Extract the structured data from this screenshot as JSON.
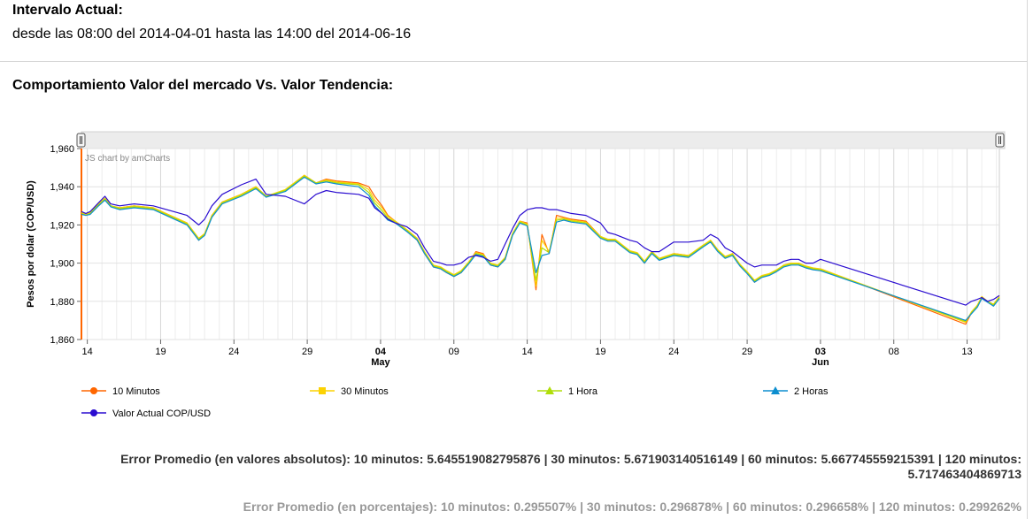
{
  "header": {
    "title": "Intervalo Actual:",
    "range": "desde las 08:00 del 2014-04-01 hasta las 14:00 del 2014-06-16"
  },
  "chart_heading": "Comportamiento Valor del mercado Vs. Valor Tendencia:",
  "chart_data": {
    "type": "line",
    "title": "",
    "xlabel": "",
    "ylabel": "Pesos por dolar (COP/USD)",
    "credit": "JS chart by amCharts",
    "ylim": [
      1860,
      1960
    ],
    "yticks": [
      1860,
      1880,
      1900,
      1920,
      1940,
      1960
    ],
    "ytick_labels": [
      "1,860",
      "1,880",
      "1,900",
      "1,920",
      "1,940",
      "1,960"
    ],
    "xticks": [
      {
        "day": 14,
        "label": "14"
      },
      {
        "day": 19,
        "label": "19"
      },
      {
        "day": 24,
        "label": "24"
      },
      {
        "day": 29,
        "label": "29"
      },
      {
        "day": 34,
        "label": "04",
        "sub": "May"
      },
      {
        "day": 39,
        "label": "09"
      },
      {
        "day": 44,
        "label": "14"
      },
      {
        "day": 49,
        "label": "19"
      },
      {
        "day": 54,
        "label": "24"
      },
      {
        "day": 59,
        "label": "29"
      },
      {
        "day": 64,
        "label": "03",
        "sub": "Jun"
      },
      {
        "day": 69,
        "label": "08"
      },
      {
        "day": 74,
        "label": "13"
      }
    ],
    "xlim": [
      13.6,
      76.2
    ],
    "legend_position": "bottom",
    "series": [
      {
        "name": "10 Minutos",
        "color": "#ff6600",
        "marker": "circle",
        "x": [
          13.6,
          13.9,
          14.2,
          14.7,
          15.2,
          15.6,
          16.2,
          17.2,
          18.5,
          20.8,
          21.6,
          22.0,
          22.5,
          23.2,
          24.5,
          25.5,
          26.2,
          27.5,
          28.8,
          29.6,
          30.3,
          31.0,
          32.5,
          33.2,
          33.6,
          34.1,
          34.5,
          35.0,
          35.8,
          36.5,
          37.0,
          37.6,
          38.1,
          38.5,
          39.0,
          39.5,
          40.0,
          40.5,
          41.0,
          41.5,
          42.0,
          42.5,
          43.0,
          43.5,
          44.0,
          44.6,
          45.0,
          45.5,
          46.0,
          46.5,
          47.0,
          48.0,
          49.0,
          49.5,
          50.0,
          51.0,
          51.5,
          52.0,
          52.5,
          53.0,
          54.0,
          55.0,
          56.0,
          56.5,
          57.0,
          57.5,
          58.0,
          58.5,
          59.0,
          59.5,
          60.0,
          60.5,
          61.0,
          61.5,
          62.0,
          62.5,
          63.0,
          63.5,
          64.0,
          73.9,
          74.3,
          74.7,
          75.0,
          75.4,
          75.8,
          76.2
        ],
        "y": [
          1926,
          1925,
          1926,
          1930,
          1934,
          1930,
          1929,
          1930,
          1929,
          1921,
          1912,
          1915,
          1925,
          1932,
          1936,
          1940,
          1935,
          1938,
          1946,
          1942,
          1944,
          1943,
          1942,
          1940,
          1935,
          1930,
          1925,
          1922,
          1917,
          1912,
          1905,
          1898,
          1897,
          1895,
          1893,
          1895,
          1900,
          1906,
          1905,
          1899,
          1898,
          1902,
          1915,
          1922,
          1921,
          1886,
          1915,
          1905,
          1925,
          1924,
          1923,
          1922,
          1914,
          1912,
          1912,
          1906,
          1905,
          1900,
          1906,
          1902,
          1905,
          1904,
          1909,
          1912,
          1907,
          1903,
          1905,
          1899,
          1895,
          1890,
          1893,
          1894,
          1896,
          1899,
          1900,
          1900,
          1898,
          1897,
          1897,
          1868,
          1874,
          1878,
          1882,
          1880,
          1878,
          1882
        ]
      },
      {
        "name": "30 Minutos",
        "color": "#fcd202",
        "marker": "square",
        "x": [
          13.6,
          13.9,
          14.2,
          14.7,
          15.2,
          15.6,
          16.2,
          17.2,
          18.5,
          20.8,
          21.6,
          22.0,
          22.5,
          23.2,
          24.5,
          25.5,
          26.2,
          27.5,
          28.8,
          29.6,
          30.3,
          31.0,
          32.5,
          33.2,
          33.6,
          34.1,
          34.5,
          35.0,
          35.8,
          36.5,
          37.0,
          37.6,
          38.1,
          38.5,
          39.0,
          39.5,
          40.0,
          40.5,
          41.0,
          41.5,
          42.0,
          42.5,
          43.0,
          43.5,
          44.0,
          44.6,
          45.0,
          45.5,
          46.0,
          46.5,
          47.0,
          48.0,
          49.0,
          49.5,
          50.0,
          51.0,
          51.5,
          52.0,
          52.5,
          53.0,
          54.0,
          55.0,
          56.0,
          56.5,
          57.0,
          57.5,
          58.0,
          58.5,
          59.0,
          59.5,
          60.0,
          60.5,
          61.0,
          61.5,
          62.0,
          62.5,
          63.0,
          63.5,
          64.0,
          73.9,
          74.3,
          74.7,
          75.0,
          75.4,
          75.8,
          76.2
        ],
        "y": [
          1926.5,
          1925.5,
          1926.5,
          1930.5,
          1934,
          1930,
          1929,
          1930,
          1929,
          1921,
          1913,
          1915.5,
          1925,
          1932,
          1936,
          1940,
          1935,
          1938.5,
          1946,
          1942,
          1943.5,
          1942.5,
          1941.5,
          1938.5,
          1933,
          1929,
          1924.5,
          1922,
          1917.5,
          1913,
          1906,
          1899,
          1898,
          1896,
          1894,
          1896,
          1900.5,
          1905.5,
          1904.5,
          1900,
          1899,
          1903,
          1915.5,
          1922,
          1920.5,
          1888,
          1912,
          1906,
          1923.5,
          1923.5,
          1922.5,
          1921.5,
          1914,
          1912.5,
          1912.5,
          1906.5,
          1905.5,
          1901,
          1906,
          1902.5,
          1905,
          1904,
          1909.5,
          1912,
          1907,
          1903.5,
          1905,
          1899.5,
          1895.5,
          1891,
          1893.5,
          1894.5,
          1896.5,
          1899,
          1900,
          1900,
          1898.5,
          1897.5,
          1897,
          1869,
          1874.5,
          1878,
          1882.5,
          1880,
          1878.5,
          1882.5
        ]
      },
      {
        "name": "1 Hora",
        "color": "#b0de09",
        "marker": "triangle",
        "x": [
          13.6,
          13.9,
          14.2,
          14.7,
          15.2,
          15.6,
          16.2,
          17.2,
          18.5,
          20.8,
          21.6,
          22.0,
          22.5,
          23.2,
          24.5,
          25.5,
          26.2,
          27.5,
          28.8,
          29.6,
          30.3,
          31.0,
          32.5,
          33.2,
          33.6,
          34.1,
          34.5,
          35.0,
          35.8,
          36.5,
          37.0,
          37.6,
          38.1,
          38.5,
          39.0,
          39.5,
          40.0,
          40.5,
          41.0,
          41.5,
          42.0,
          42.5,
          43.0,
          43.5,
          44.0,
          44.6,
          45.0,
          45.5,
          46.0,
          46.5,
          47.0,
          48.0,
          49.0,
          49.5,
          50.0,
          51.0,
          51.5,
          52.0,
          52.5,
          53.0,
          54.0,
          55.0,
          56.0,
          56.5,
          57.0,
          57.5,
          58.0,
          58.5,
          59.0,
          59.5,
          60.0,
          60.5,
          61.0,
          61.5,
          62.0,
          62.5,
          63.0,
          63.5,
          64.0,
          73.9,
          74.3,
          74.7,
          75.0,
          75.4,
          75.8,
          76.2
        ],
        "y": [
          1926,
          1925,
          1926,
          1930,
          1933.5,
          1930,
          1928.5,
          1929.5,
          1928.5,
          1920.5,
          1912.5,
          1915,
          1924.5,
          1931.5,
          1935.5,
          1939.5,
          1935,
          1938,
          1945.5,
          1942,
          1943,
          1942,
          1941,
          1937,
          1931.5,
          1927.5,
          1923.5,
          1921.5,
          1917,
          1912.5,
          1905.5,
          1898.5,
          1897.5,
          1895.5,
          1893.5,
          1895.5,
          1900,
          1905,
          1904,
          1899.5,
          1898.5,
          1902.5,
          1915,
          1921.5,
          1920,
          1891,
          1908,
          1905.5,
          1922.5,
          1923,
          1922,
          1921,
          1913.5,
          1912,
          1912,
          1906,
          1905,
          1900.5,
          1905.5,
          1902,
          1904.5,
          1903.5,
          1909,
          1911.5,
          1906.5,
          1903,
          1904.5,
          1899,
          1895,
          1890.5,
          1893,
          1894,
          1896,
          1898.5,
          1899.5,
          1899.5,
          1898,
          1897,
          1896.5,
          1869.5,
          1874,
          1877.5,
          1882,
          1880,
          1878,
          1882
        ]
      },
      {
        "name": "2 Horas",
        "color": "#0d8ecf",
        "marker": "triangle",
        "x": [
          13.6,
          13.9,
          14.2,
          14.7,
          15.2,
          15.6,
          16.2,
          17.2,
          18.5,
          20.8,
          21.6,
          22.0,
          22.5,
          23.2,
          24.5,
          25.5,
          26.2,
          27.5,
          28.8,
          29.6,
          30.3,
          31.0,
          32.5,
          33.2,
          33.6,
          34.1,
          34.5,
          35.0,
          35.8,
          36.5,
          37.0,
          37.6,
          38.1,
          38.5,
          39.0,
          39.5,
          40.0,
          40.5,
          41.0,
          41.5,
          42.0,
          42.5,
          43.0,
          43.5,
          44.0,
          44.6,
          45.0,
          45.5,
          46.0,
          46.5,
          47.0,
          48.0,
          49.0,
          49.5,
          50.0,
          51.0,
          51.5,
          52.0,
          52.5,
          53.0,
          54.0,
          55.0,
          56.0,
          56.5,
          57.0,
          57.5,
          58.0,
          58.5,
          59.0,
          59.5,
          60.0,
          60.5,
          61.0,
          61.5,
          62.0,
          62.5,
          63.0,
          63.5,
          64.0,
          73.9,
          74.3,
          74.7,
          75.0,
          75.4,
          75.8,
          76.2
        ],
        "y": [
          1925.5,
          1925,
          1925.5,
          1929.5,
          1933,
          1929.5,
          1928,
          1929,
          1928,
          1920,
          1912,
          1914.5,
          1924,
          1931,
          1935,
          1939,
          1934.5,
          1937.5,
          1945,
          1941.5,
          1942.5,
          1941.5,
          1940,
          1935.5,
          1930,
          1926,
          1922.5,
          1921,
          1916.5,
          1912,
          1905,
          1898,
          1897,
          1895,
          1893,
          1895,
          1899.5,
          1904.5,
          1903.5,
          1899,
          1898,
          1902,
          1914.5,
          1921,
          1919.5,
          1895,
          1904,
          1905,
          1921.5,
          1922.5,
          1921.5,
          1920.5,
          1913,
          1911.5,
          1911.5,
          1905.5,
          1904.5,
          1900,
          1905,
          1901.5,
          1904,
          1903,
          1908.5,
          1911,
          1906,
          1902.5,
          1904,
          1898.5,
          1894.5,
          1890,
          1892.5,
          1893.5,
          1895.5,
          1898,
          1899,
          1899,
          1897.5,
          1896.5,
          1896,
          1870,
          1873.5,
          1877,
          1881.5,
          1879.5,
          1877.5,
          1881.5
        ]
      },
      {
        "name": "Valor Actual COP/USD",
        "color": "#2a0cd0",
        "marker": "circle",
        "x": [
          13.6,
          13.9,
          14.2,
          14.7,
          15.2,
          15.6,
          16.2,
          17.2,
          18.5,
          20.8,
          21.6,
          22.0,
          22.5,
          23.2,
          24.5,
          25.5,
          26.2,
          27.5,
          28.8,
          29.6,
          30.3,
          31.0,
          32.5,
          33.2,
          33.6,
          34.1,
          34.5,
          35.0,
          35.8,
          36.5,
          37.0,
          37.6,
          38.1,
          38.5,
          39.0,
          39.5,
          40.0,
          40.5,
          41.0,
          41.5,
          42.0,
          42.5,
          43.0,
          43.5,
          44.0,
          44.6,
          45.0,
          45.5,
          46.0,
          46.5,
          47.0,
          48.0,
          49.0,
          49.5,
          50.0,
          51.0,
          51.5,
          52.0,
          52.5,
          53.0,
          54.0,
          55.0,
          56.0,
          56.5,
          57.0,
          57.5,
          58.0,
          58.5,
          59.0,
          59.5,
          60.0,
          60.5,
          61.0,
          61.5,
          62.0,
          62.5,
          63.0,
          63.5,
          64.0,
          73.9,
          74.3,
          74.7,
          75.0,
          75.4,
          75.8,
          76.2
        ],
        "y": [
          1927,
          1926,
          1927,
          1931,
          1935,
          1931,
          1930,
          1931,
          1930,
          1925,
          1920,
          1923,
          1930,
          1936,
          1941,
          1944,
          1936,
          1935,
          1931,
          1936,
          1938,
          1937,
          1936,
          1934,
          1929,
          1926,
          1923,
          1921,
          1919,
          1915,
          1908,
          1901,
          1900,
          1899,
          1899,
          1900,
          1903,
          1904,
          1903,
          1901,
          1902,
          1910,
          1918,
          1925,
          1928,
          1929,
          1929,
          1928,
          1928,
          1927,
          1926,
          1925,
          1921,
          1916,
          1915,
          1912,
          1911,
          1908,
          1906,
          1906,
          1911,
          1911,
          1912,
          1915,
          1913,
          1908,
          1906,
          1903,
          1900,
          1898,
          1899,
          1899,
          1899,
          1901,
          1902,
          1902,
          1900,
          1900,
          1902,
          1878,
          1880,
          1881,
          1882,
          1880,
          1881,
          1883
        ]
      }
    ]
  },
  "errors": {
    "absolute": "Error Promedio (en valores absolutos): 10 minutos: 5.645519082795876 | 30 minutos: 5.671903140516149 | 60 minutos: 5.667745559215391 | 120 minutos: 5.717463404869713",
    "percent": "Error Promedio (en porcentajes): 10 minutos: 0.295507% | 30 minutos: 0.296878% | 60 minutos: 0.296658% | 120 minutos: 0.299262%"
  }
}
